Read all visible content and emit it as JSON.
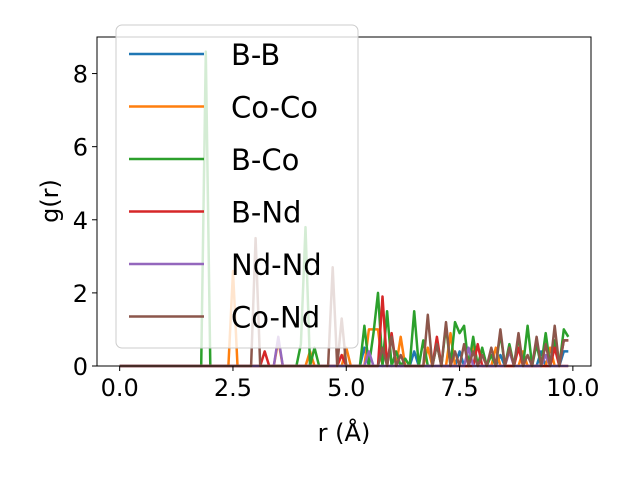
{
  "chart_data": {
    "type": "line",
    "title": "",
    "xlabel": "r (Å)",
    "ylabel": "g(r)",
    "xlim": [
      -0.5,
      10.4
    ],
    "ylim": [
      0,
      9.0
    ],
    "xticks": [
      0.0,
      2.5,
      5.0,
      7.5,
      10.0
    ],
    "xtick_labels": [
      "0.0",
      "2.5",
      "5.0",
      "7.5",
      "10.0"
    ],
    "yticks": [
      0,
      2,
      4,
      6,
      8
    ],
    "ytick_labels": [
      "0",
      "2",
      "4",
      "6",
      "8"
    ],
    "grid": false,
    "legend_position": "upper-left",
    "series": [
      {
        "name": "B-B",
        "color": "#1f77b4",
        "x": [
          0.0,
          5.3,
          5.4,
          5.5,
          6.4,
          6.5,
          6.6,
          7.4,
          7.5,
          7.6,
          8.3,
          8.4,
          8.5,
          9.2,
          9.3,
          9.4,
          9.7,
          9.8,
          9.9
        ],
        "y": [
          0,
          0,
          0.5,
          0,
          0,
          0.4,
          0,
          0,
          0.4,
          0,
          0,
          0.3,
          0,
          0,
          0.4,
          0,
          0,
          0.4,
          0.4
        ]
      },
      {
        "name": "Co-Co",
        "color": "#ff7f0e",
        "x": [
          0.0,
          2.4,
          2.5,
          2.6,
          3.4,
          3.5,
          3.6,
          4.1,
          4.2,
          4.3,
          4.9,
          5.0,
          5.1,
          5.4,
          5.5,
          5.7,
          5.8,
          6.1,
          6.2,
          6.3,
          6.7,
          6.8,
          6.9,
          7.2,
          7.3,
          7.4,
          7.7,
          7.8,
          7.9,
          8.2,
          8.3,
          8.4,
          8.8,
          8.9,
          9.0,
          9.4,
          9.5,
          9.6,
          9.9
        ],
        "y": [
          0,
          0,
          2.6,
          0,
          0,
          0.7,
          0,
          0,
          0.4,
          0,
          0,
          0.5,
          0,
          0,
          1.0,
          1.0,
          0,
          0,
          0.8,
          0,
          0,
          0.5,
          0,
          0,
          0.9,
          0,
          0,
          0.6,
          0,
          0,
          0.5,
          0,
          0,
          0.4,
          0,
          0,
          0.5,
          0,
          0
        ]
      },
      {
        "name": "B-Co",
        "color": "#2ca02c",
        "x": [
          0.0,
          1.8,
          1.9,
          2.0,
          3.9,
          4.0,
          4.1,
          4.2,
          4.3,
          4.4,
          4.5,
          5.3,
          5.4,
          5.5,
          5.6,
          5.7,
          5.8,
          5.9,
          6.0,
          6.1,
          6.2,
          6.3,
          6.4,
          6.5,
          6.6,
          6.7,
          6.8,
          6.9,
          7.0,
          7.1,
          7.2,
          7.3,
          7.4,
          7.5,
          7.6,
          7.7,
          7.8,
          7.9,
          8.0,
          8.1,
          8.2,
          8.3,
          8.4,
          8.5,
          8.6,
          8.7,
          8.8,
          8.9,
          9.0,
          9.1,
          9.2,
          9.3,
          9.4,
          9.5,
          9.6,
          9.7,
          9.8,
          9.9
        ],
        "y": [
          0,
          0,
          8.6,
          0,
          0,
          0.6,
          3.8,
          0,
          0.5,
          0,
          0,
          0,
          1.1,
          0,
          0.9,
          2.0,
          0,
          1.5,
          0,
          0.4,
          0,
          0.2,
          0,
          1.5,
          0,
          0.7,
          0,
          0,
          0.6,
          0,
          1.1,
          0,
          1.2,
          0.9,
          1.1,
          0,
          0.8,
          0,
          0.5,
          0,
          0.3,
          0,
          0.9,
          0,
          0.6,
          0,
          0.8,
          0,
          1.1,
          0,
          0.6,
          0,
          0.9,
          0,
          0.7,
          0,
          1.0,
          0.8
        ]
      },
      {
        "name": "B-Nd",
        "color": "#d62728",
        "x": [
          0.0,
          3.1,
          3.2,
          3.3,
          4.8,
          4.9,
          5.0,
          5.7,
          5.8,
          5.9,
          6.0,
          6.1,
          6.9,
          7.0,
          7.1,
          7.8,
          7.9,
          8.0,
          8.7,
          8.8,
          8.9,
          9.5,
          9.6,
          9.7,
          9.8,
          9.9
        ],
        "y": [
          0,
          0,
          0.4,
          0,
          0,
          0.3,
          0,
          0,
          1.9,
          0,
          0.9,
          0,
          0,
          0.8,
          0,
          0,
          0.6,
          0,
          0,
          0.5,
          0,
          0,
          0.5,
          0,
          0.7,
          0.7
        ]
      },
      {
        "name": "Nd-Nd",
        "color": "#9467bd",
        "x": [
          0.0,
          3.4,
          3.5,
          3.6,
          5.4,
          5.5,
          5.6,
          7.6,
          7.7,
          7.8,
          8.5,
          8.6,
          8.7,
          9.3,
          9.4,
          9.5,
          9.9
        ],
        "y": [
          0,
          0,
          0.8,
          0,
          0,
          0.4,
          0,
          0,
          0.5,
          0,
          0,
          0.4,
          0,
          0,
          0.3,
          0,
          0
        ]
      },
      {
        "name": "Co-Nd",
        "color": "#8c564b",
        "x": [
          0.0,
          2.9,
          3.0,
          3.1,
          4.6,
          4.7,
          4.8,
          4.9,
          5.0,
          5.7,
          5.8,
          5.9,
          6.0,
          6.1,
          6.2,
          6.3,
          6.7,
          6.8,
          6.9,
          7.0,
          7.1,
          7.2,
          7.3,
          7.4,
          7.5,
          7.6,
          7.7,
          7.8,
          7.9,
          8.0,
          8.1,
          8.2,
          8.3,
          8.4,
          8.5,
          8.6,
          8.7,
          8.8,
          8.9,
          9.0,
          9.1,
          9.2,
          9.3,
          9.4,
          9.5,
          9.6,
          9.7,
          9.8,
          9.9
        ],
        "y": [
          0,
          0,
          3.5,
          0,
          0,
          2.7,
          0,
          1.3,
          0,
          0,
          0.5,
          0,
          0.8,
          0,
          0.3,
          0,
          0,
          1.4,
          0,
          0.6,
          0,
          1.2,
          0,
          0.4,
          0,
          0.6,
          0,
          0.4,
          0,
          0.3,
          0,
          0.5,
          0,
          1.0,
          0,
          0.5,
          0,
          0.9,
          0,
          0.3,
          0,
          0.8,
          0,
          0.6,
          0,
          1.1,
          0,
          0.7,
          0.7
        ]
      }
    ]
  }
}
